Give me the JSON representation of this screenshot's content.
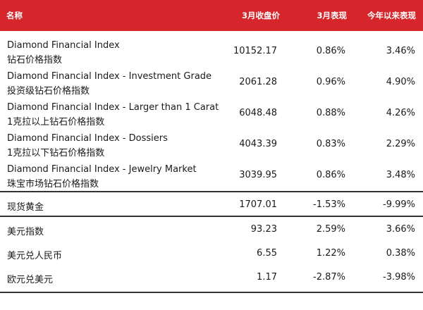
{
  "table": {
    "headers": {
      "name": "名称",
      "close": "3月收盘价",
      "march": "3月表现",
      "ytd": "今年以来表现"
    },
    "rows": [
      {
        "name_en": "Diamond Financial Index",
        "name_cn": "钻石价格指数",
        "close": "10152.17",
        "march": "0.86%",
        "ytd": "3.46%"
      },
      {
        "name_en": "Diamond Financial Index - Investment Grade",
        "name_cn": "投资级钻石价格指数",
        "close": "2061.28",
        "march": "0.96%",
        "ytd": "4.90%"
      },
      {
        "name_en": "Diamond Financial Index - Larger than 1 Carat",
        "name_cn": "1克拉以上钻石价格指数",
        "close": "6048.48",
        "march": "0.88%",
        "ytd": "4.26%"
      },
      {
        "name_en": "Diamond Financial Index - Dossiers",
        "name_cn": "1克拉以下钻石价格指数",
        "close": "4043.39",
        "march": "0.83%",
        "ytd": "2.29%"
      },
      {
        "name_en": "Diamond Financial Index - Jewelry Market",
        "name_cn": "珠宝市场钻石价格指数",
        "close": "3039.95",
        "march": "0.86%",
        "ytd": "3.48%"
      },
      {
        "name_cn": "现货黄金",
        "close": "1707.01",
        "march": "-1.53%",
        "ytd": "-9.99%"
      },
      {
        "name_cn": "美元指数",
        "close": "93.23",
        "march": "2.59%",
        "ytd": "3.66%"
      },
      {
        "name_cn": "美元兑人民币",
        "close": "6.55",
        "march": "1.22%",
        "ytd": "0.38%"
      },
      {
        "name_cn": "欧元兑美元",
        "close": "1.17",
        "march": "-2.87%",
        "ytd": "-3.98%"
      }
    ]
  },
  "colors": {
    "header_bg": "#d6262b",
    "header_text": "#ffffff",
    "rule": "#333333"
  }
}
